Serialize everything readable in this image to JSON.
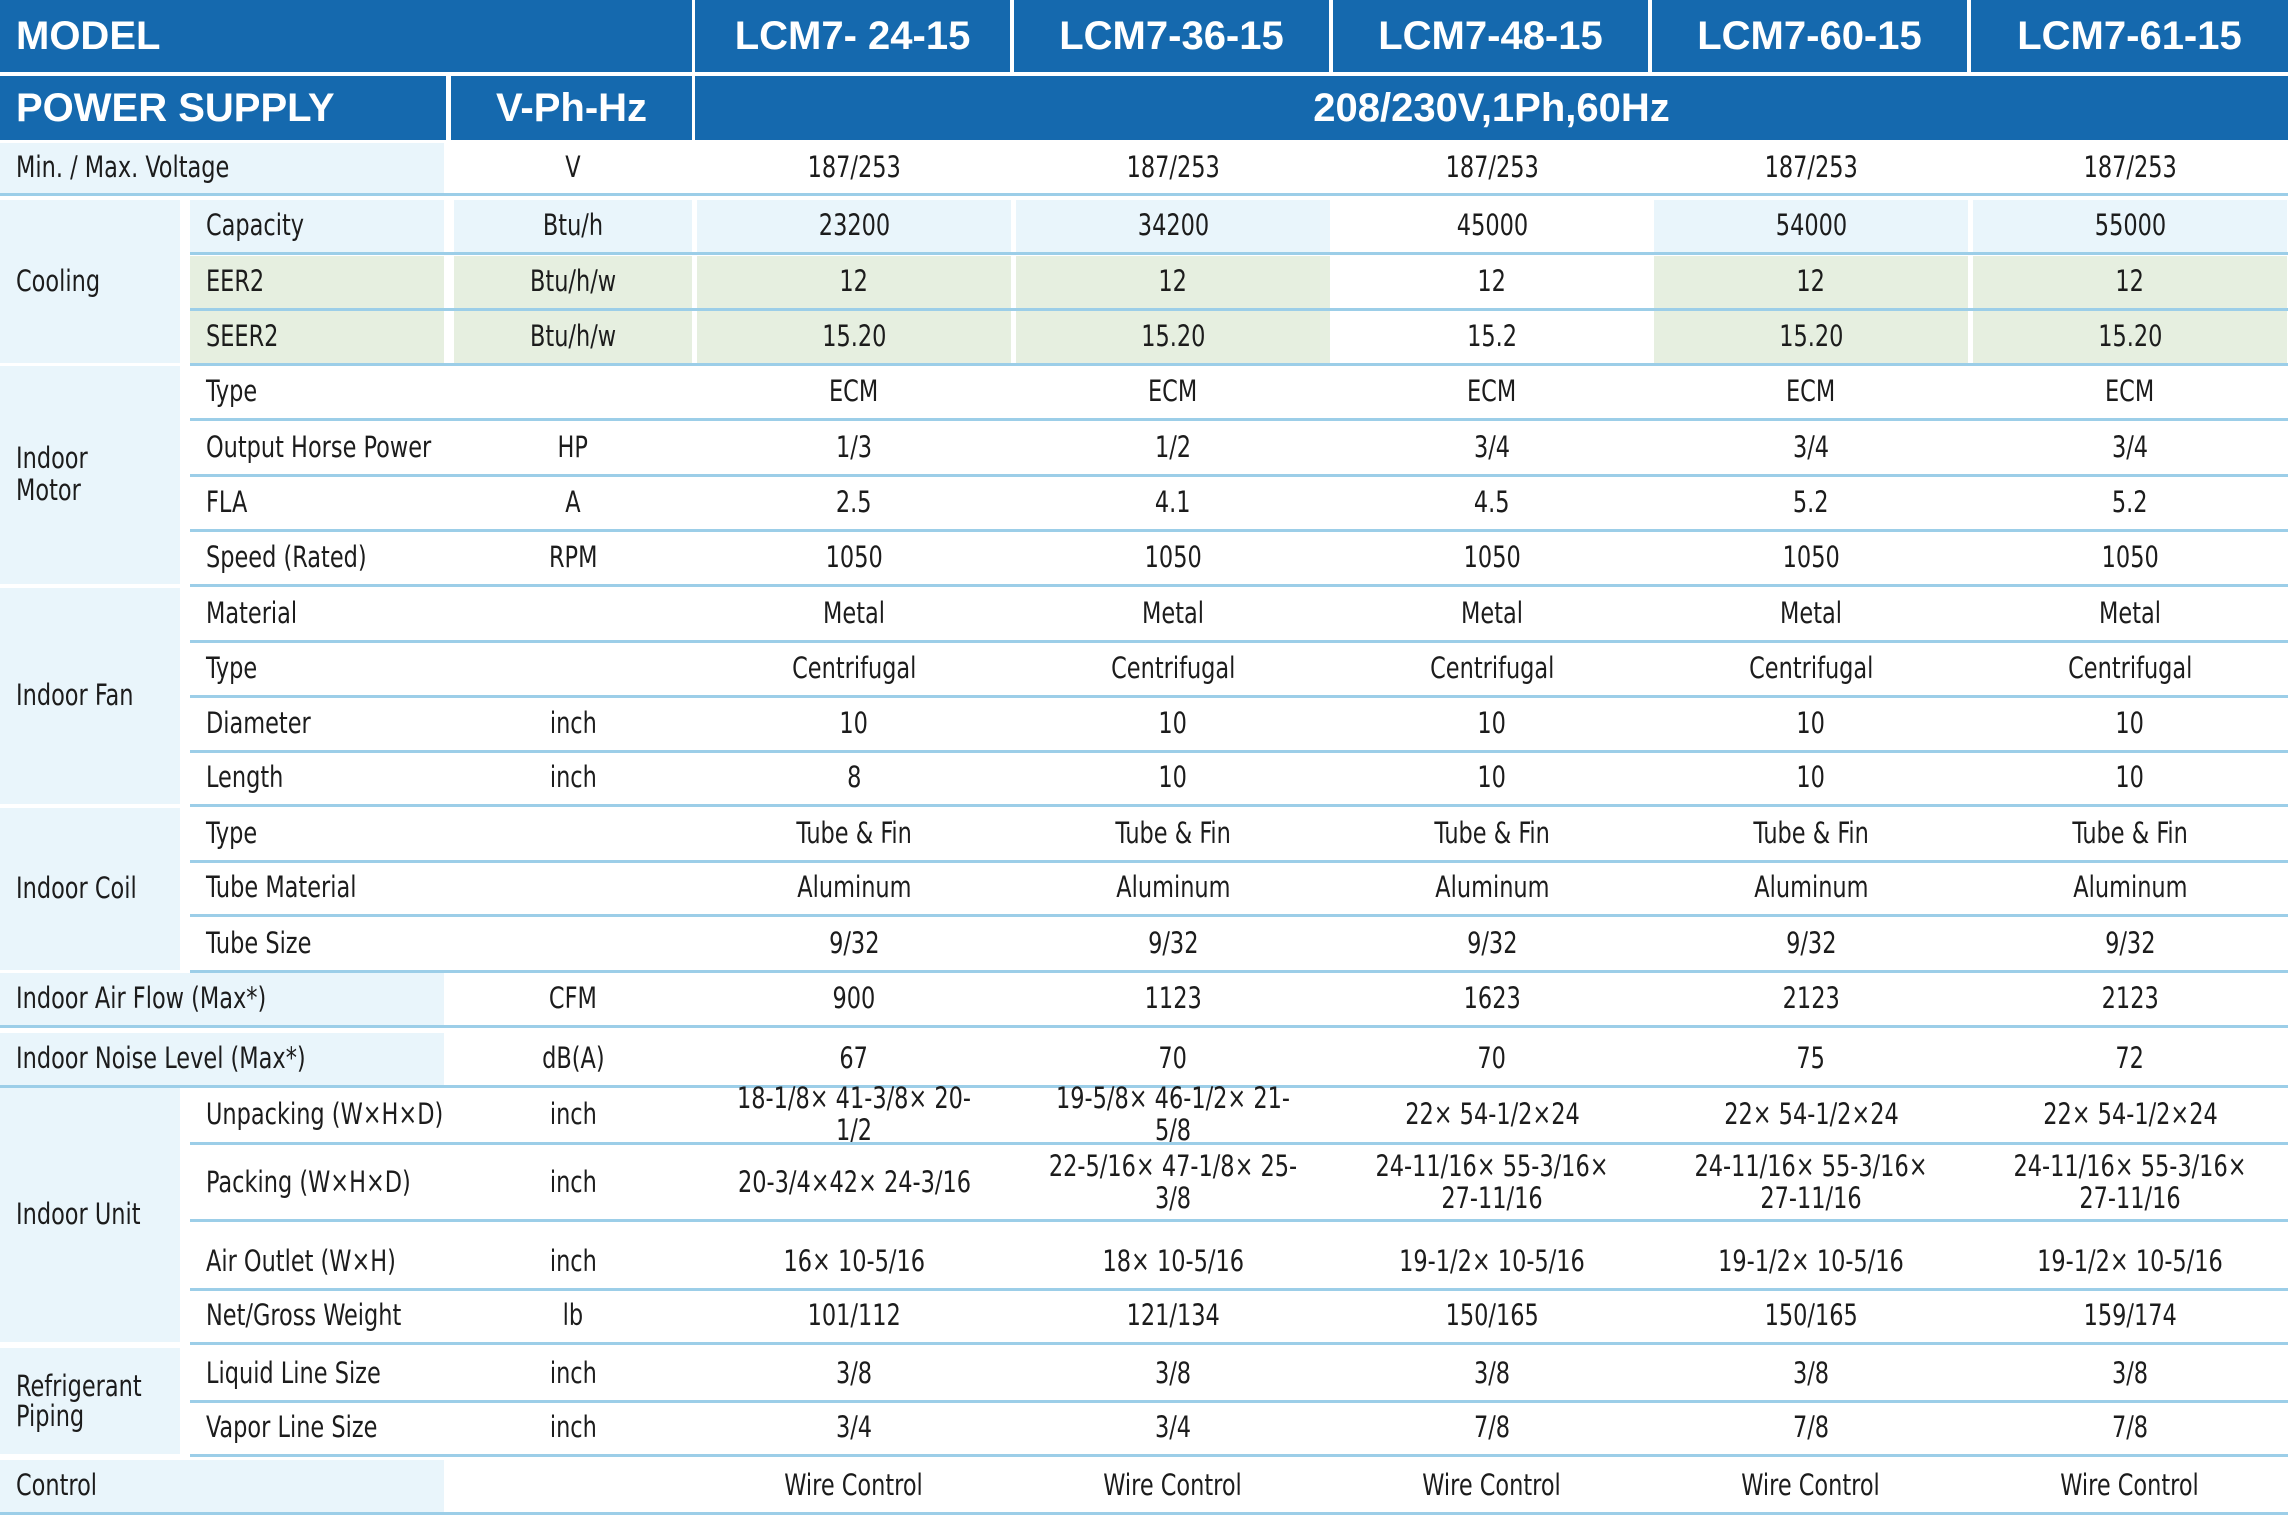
{
  "header": {
    "model_label": "MODEL",
    "models": [
      "LCM7- 24-15",
      "LCM7-36-15",
      "LCM7-48-15",
      "LCM7-60-15",
      "LCM7-61-15"
    ],
    "power_supply_label": "POWER SUPPLY",
    "power_unit": "V-Ph-Hz",
    "power_value": "208/230V,1Ph,60Hz"
  },
  "groups": [
    {
      "label": "Min. / Max. Voltage",
      "rows": [
        {
          "unit": "V",
          "values": [
            "187/253",
            "187/253",
            "187/253",
            "187/253",
            "187/253"
          ]
        }
      ]
    },
    {
      "label": "Cooling",
      "rows": [
        {
          "item": "Capacity",
          "unit": "Btu/h",
          "values": [
            "23200",
            "34200",
            "45000",
            "54000",
            "55000"
          ]
        },
        {
          "item": "EER2",
          "unit": "Btu/h/w",
          "values": [
            "12",
            "12",
            "12",
            "12",
            "12"
          ]
        },
        {
          "item": "SEER2",
          "unit": "Btu/h/w",
          "values": [
            "15.20",
            "15.20",
            "15.2",
            "15.20",
            "15.20"
          ]
        }
      ]
    },
    {
      "label": "Indoor Motor",
      "rows": [
        {
          "item": "Type",
          "unit": "",
          "values": [
            "ECM",
            "ECM",
            "ECM",
            "ECM",
            "ECM"
          ]
        },
        {
          "item": "Output Horse Power",
          "unit": "HP",
          "values": [
            "1/3",
            "1/2",
            "3/4",
            "3/4",
            "3/4"
          ]
        },
        {
          "item": "FLA",
          "unit": "A",
          "values": [
            "2.5",
            "4.1",
            "4.5",
            "5.2",
            "5.2"
          ]
        },
        {
          "item": "Speed (Rated)",
          "unit": "RPM",
          "values": [
            "1050",
            "1050",
            "1050",
            "1050",
            "1050"
          ]
        }
      ]
    },
    {
      "label": "Indoor Fan",
      "rows": [
        {
          "item": "Material",
          "unit": "",
          "values": [
            "Metal",
            "Metal",
            "Metal",
            "Metal",
            "Metal"
          ]
        },
        {
          "item": "Type",
          "unit": "",
          "values": [
            "Centrifugal",
            "Centrifugal",
            "Centrifugal",
            "Centrifugal",
            "Centrifugal"
          ]
        },
        {
          "item": "Diameter",
          "unit": "inch",
          "values": [
            "10",
            "10",
            "10",
            "10",
            "10"
          ]
        },
        {
          "item": "Length",
          "unit": "inch",
          "values": [
            "8",
            "10",
            "10",
            "10",
            "10"
          ]
        }
      ]
    },
    {
      "label": "Indoor Coil",
      "rows": [
        {
          "item": "Type",
          "unit": "",
          "values": [
            "Tube & Fin",
            "Tube & Fin",
            "Tube & Fin",
            "Tube & Fin",
            "Tube & Fin"
          ]
        },
        {
          "item": "Tube Material",
          "unit": "",
          "values": [
            "Aluminum",
            "Aluminum",
            "Aluminum",
            "Aluminum",
            "Aluminum"
          ]
        },
        {
          "item": "Tube Size",
          "unit": "",
          "values": [
            "9/32",
            "9/32",
            "9/32",
            "9/32",
            "9/32"
          ]
        }
      ]
    },
    {
      "label": "Indoor Air Flow (Max*)",
      "rows": [
        {
          "unit": "CFM",
          "values": [
            "900",
            "1123",
            "1623",
            "2123",
            "2123"
          ]
        }
      ]
    },
    {
      "label": "Indoor Noise Level (Max*)",
      "rows": [
        {
          "unit": "dB(A)",
          "values": [
            "67",
            "70",
            "70",
            "75",
            "72"
          ]
        }
      ]
    },
    {
      "label": "Indoor Unit",
      "rows": [
        {
          "item": "Unpacking (W×H×D)",
          "unit": "inch",
          "values": [
            "18-1/8× 41-3/8× 20-1/2",
            "19-5/8× 46-1/2× 21-5/8",
            "22× 54-1/2×24",
            "22× 54-1/2×24",
            "22× 54-1/2×24"
          ]
        },
        {
          "item": "Packing  (W×H×D)",
          "unit": "inch",
          "values": [
            "20-3/4×42× 24-3/16",
            "22-5/16× 47-1/8× 25-3/8",
            "24-11/16× 55-3/16× 27-11/16",
            "24-11/16× 55-3/16× 27-11/16",
            "24-11/16× 55-3/16× 27-11/16"
          ]
        },
        {
          "item": "Air Outlet (W×H)",
          "unit": "inch",
          "values": [
            "16× 10-5/16",
            "18× 10-5/16",
            "19-1/2× 10-5/16",
            "19-1/2× 10-5/16",
            "19-1/2× 10-5/16"
          ]
        },
        {
          "item": "Net/Gross Weight",
          "unit": "lb",
          "values": [
            "101/112",
            "121/134",
            "150/165",
            "150/165",
            "159/174"
          ]
        }
      ]
    },
    {
      "label": "Refrigerant Piping",
      "rows": [
        {
          "item": "Liquid Line Size",
          "unit": "inch",
          "values": [
            "3/8",
            "3/8",
            "3/8",
            "3/8",
            "3/8"
          ]
        },
        {
          "item": "Vapor Line Size",
          "unit": "inch",
          "values": [
            "3/4",
            "3/4",
            "7/8",
            "7/8",
            "7/8"
          ]
        }
      ]
    },
    {
      "label": "Control",
      "rows": [
        {
          "unit": "",
          "values": [
            "Wire Control",
            "Wire Control",
            "Wire Control",
            "Wire Control",
            "Wire Control"
          ]
        }
      ]
    }
  ],
  "colors": {
    "header_bg": "#1569ae",
    "header_text": "#ffffff",
    "label_bg": "#e9f5fb",
    "highlight_bg": "#e6efe0",
    "rule": "#9ccee8"
  }
}
